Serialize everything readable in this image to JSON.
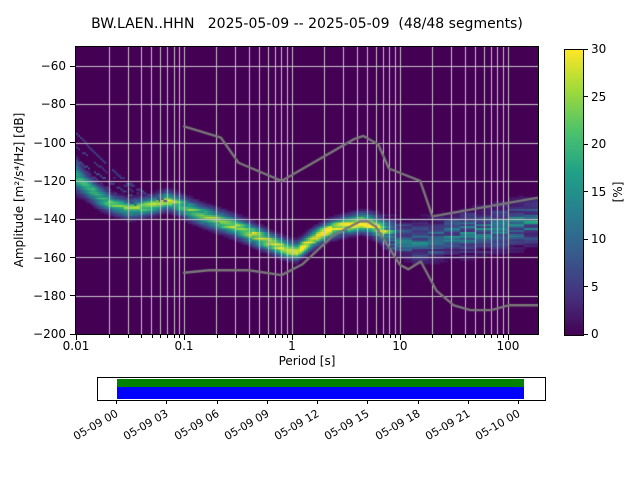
{
  "title": "BW.LAEN..HHN   2025-05-09 -- 2025-05-09  (48/48 segments)",
  "axes": {
    "xlabel": "Period [s]",
    "ylabel": "Amplitude [m²/s⁴/Hz] [dB]"
  },
  "colorbar": {
    "label": "[%]",
    "min": 0,
    "max": 30,
    "ticks": [
      0,
      5,
      10,
      15,
      20,
      25,
      30
    ]
  },
  "timeline": {
    "labels": [
      "05-09 00",
      "05-09 03",
      "05-09 06",
      "05-09 09",
      "05-09 12",
      "05-09 15",
      "05-09 18",
      "05-09 21",
      "05-10 00"
    ],
    "coverage_color": "#008000",
    "data_color": "#0000ff"
  },
  "colors": {
    "plot_background": "#440154",
    "grid": "#cdcdcd",
    "noise_model": "#787878",
    "spine": "#000000",
    "viridis_stops": [
      [
        0.0,
        [
          68,
          1,
          84
        ]
      ],
      [
        0.14,
        [
          70,
          50,
          127
        ]
      ],
      [
        0.29,
        [
          54,
          92,
          141
        ]
      ],
      [
        0.43,
        [
          39,
          127,
          142
        ]
      ],
      [
        0.57,
        [
          31,
          161,
          135
        ]
      ],
      [
        0.71,
        [
          74,
          194,
          109
        ]
      ],
      [
        0.86,
        [
          160,
          218,
          57
        ]
      ],
      [
        1.0,
        [
          253,
          231,
          37
        ]
      ]
    ]
  },
  "chart_data": {
    "type": "heatmap",
    "title": "BW.LAEN..HHN   2025-05-09 -- 2025-05-09  (48/48 segments)",
    "xlabel": "Period [s]",
    "ylabel": "Amplitude [m²/s⁴/Hz] [dB]",
    "legend": "probability [%] colorbar 0-30, viridis",
    "xscale": "log",
    "xlim": [
      0.01,
      190
    ],
    "ylim": [
      -200,
      -50
    ],
    "clim": [
      0,
      30
    ],
    "grid": true,
    "xticks": [
      {
        "v": 0.01,
        "label": "0.01"
      },
      {
        "v": 0.1,
        "label": "0.1"
      },
      {
        "v": 1,
        "label": "1"
      },
      {
        "v": 10,
        "label": "10"
      },
      {
        "v": 100,
        "label": "100"
      }
    ],
    "yticks": [
      {
        "v": -60,
        "label": "−60"
      },
      {
        "v": -80,
        "label": "−80"
      },
      {
        "v": -100,
        "label": "−100"
      },
      {
        "v": -120,
        "label": "−120"
      },
      {
        "v": -140,
        "label": "−140"
      },
      {
        "v": -160,
        "label": "−160"
      },
      {
        "v": -180,
        "label": "−180"
      },
      {
        "v": -200,
        "label": "−200"
      }
    ],
    "psd_mode_band_comment": "each row: [period_s, center_dB, sigma_dB, peak_probability_pct]",
    "psd_mode_band": [
      [
        0.01,
        -117.5,
        5.0,
        18
      ],
      [
        0.012,
        -122.0,
        4.0,
        18
      ],
      [
        0.016,
        -128.0,
        3.5,
        19
      ],
      [
        0.022,
        -132.5,
        3.0,
        21
      ],
      [
        0.03,
        -134.5,
        3.0,
        22
      ],
      [
        0.042,
        -133.5,
        3.0,
        23
      ],
      [
        0.055,
        -132.0,
        3.0,
        24
      ],
      [
        0.068,
        -130.0,
        3.0,
        26
      ],
      [
        0.082,
        -131.5,
        3.0,
        24
      ],
      [
        0.1,
        -134.0,
        3.2,
        22
      ],
      [
        0.14,
        -137.5,
        3.2,
        22
      ],
      [
        0.2,
        -140.5,
        3.2,
        24
      ],
      [
        0.3,
        -144.0,
        3.2,
        25
      ],
      [
        0.45,
        -148.5,
        3.2,
        27
      ],
      [
        0.65,
        -152.5,
        3.0,
        28
      ],
      [
        0.9,
        -155.8,
        2.8,
        30
      ],
      [
        1.1,
        -156.5,
        2.8,
        30
      ],
      [
        1.5,
        -150.5,
        2.8,
        30
      ],
      [
        1.8,
        -148.0,
        2.8,
        30
      ],
      [
        2.25,
        -145.3,
        2.8,
        30
      ],
      [
        2.8,
        -143.7,
        2.8,
        30
      ],
      [
        3.5,
        -142.5,
        2.9,
        30
      ],
      [
        4.3,
        -141.5,
        3.0,
        30
      ],
      [
        5.3,
        -142.5,
        3.2,
        30
      ],
      [
        6.3,
        -144.7,
        3.6,
        27
      ],
      [
        7.5,
        -147.5,
        4.5,
        18
      ],
      [
        9.0,
        -149.5,
        5.5,
        13
      ],
      [
        11.0,
        -150.5,
        6.0,
        12
      ],
      [
        14.0,
        -151.5,
        6.2,
        11
      ],
      [
        20.0,
        -150.5,
        6.5,
        11
      ],
      [
        30.0,
        -148.5,
        6.5,
        11
      ],
      [
        50.0,
        -146.5,
        6.8,
        11
      ],
      [
        80.0,
        -144.5,
        7.0,
        12
      ],
      [
        120.0,
        -143.0,
        7.0,
        12
      ],
      [
        190.0,
        -141.5,
        7.0,
        13
      ]
    ],
    "fan_streaks": [
      {
        "pct": 7,
        "points": [
          [
            0.01,
            -95
          ],
          [
            0.016,
            -107
          ],
          [
            0.028,
            -120
          ],
          [
            0.05,
            -128
          ],
          [
            0.068,
            -130
          ]
        ]
      },
      {
        "pct": 6,
        "points": [
          [
            0.01,
            -102
          ],
          [
            0.018,
            -114
          ],
          [
            0.035,
            -126
          ],
          [
            0.06,
            -130
          ]
        ]
      },
      {
        "pct": 8,
        "points": [
          [
            0.01,
            -109
          ],
          [
            0.02,
            -120
          ],
          [
            0.04,
            -131
          ]
        ]
      },
      {
        "pct": 5,
        "points": [
          [
            0.012,
            -100
          ],
          [
            0.025,
            -117
          ],
          [
            0.05,
            -129
          ]
        ]
      },
      {
        "pct": 6,
        "points": [
          [
            0.011,
            -113
          ],
          [
            0.02,
            -124
          ],
          [
            0.035,
            -132
          ]
        ]
      },
      {
        "pct": 5,
        "points": [
          [
            0.09,
            -127
          ],
          [
            0.15,
            -132
          ],
          [
            0.25,
            -136
          ]
        ]
      }
    ],
    "noise_models": {
      "nhnm": [
        [
          0.1,
          -91.5
        ],
        [
          0.22,
          -97.4
        ],
        [
          0.32,
          -110.5
        ],
        [
          0.8,
          -120.0
        ],
        [
          3.8,
          -98.0
        ],
        [
          4.6,
          -96.5
        ],
        [
          6.3,
          -101.0
        ],
        [
          7.9,
          -113.5
        ],
        [
          15.4,
          -120.0
        ],
        [
          20.0,
          -138.5
        ],
        [
          354.8,
          -126.0
        ]
      ],
      "nlnm": [
        [
          0.1,
          -168.0
        ],
        [
          0.17,
          -166.7
        ],
        [
          0.4,
          -166.7
        ],
        [
          0.8,
          -169.2
        ],
        [
          1.24,
          -163.7
        ],
        [
          2.4,
          -148.6
        ],
        [
          4.3,
          -141.1
        ],
        [
          5.0,
          -141.1
        ],
        [
          6.0,
          -144.0
        ],
        [
          10.0,
          -163.8
        ],
        [
          12.0,
          -166.2
        ],
        [
          15.6,
          -162.1
        ],
        [
          21.9,
          -177.5
        ],
        [
          31.6,
          -185.0
        ],
        [
          45.0,
          -187.5
        ],
        [
          70.0,
          -187.5
        ],
        [
          101.0,
          -185.0
        ],
        [
          190.0,
          -185.0
        ]
      ]
    }
  }
}
